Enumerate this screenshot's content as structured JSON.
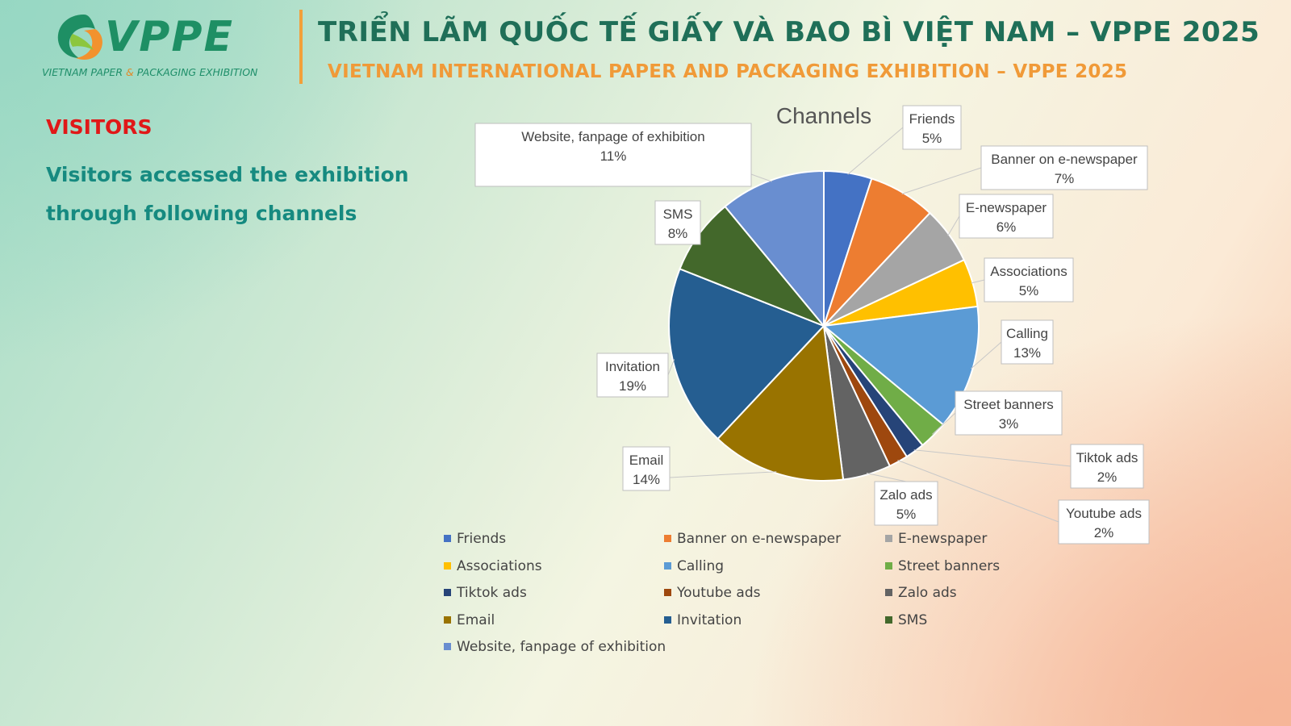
{
  "header": {
    "logo": {
      "word": "VPPE",
      "sub_left": "VIETNAM PAPER",
      "sub_amp": "&",
      "sub_right": "PACKAGING EXHIBITION"
    },
    "title_vn": "TRIỂN LÃM QUỐC TẾ GIẤY VÀ BAO BÌ VIỆT NAM – VPPE 2025",
    "title_en": "VIETNAM INTERNATIONAL  PAPER AND PACKAGING EXHIBITION – VPPE 2025"
  },
  "section": {
    "heading": "VISITORS",
    "description": "Visitors accessed the exhibition through following channels"
  },
  "chart_data": {
    "type": "pie",
    "title": "Channels",
    "legend_position": "bottom",
    "slices": [
      {
        "name": "Friends",
        "value": 5,
        "label": "5%",
        "color": "#4472c4"
      },
      {
        "name": "Banner on e-newspaper",
        "value": 7,
        "label": "7%",
        "color": "#ed7d31"
      },
      {
        "name": "E-newspaper",
        "value": 6,
        "label": "6%",
        "color": "#a5a5a5"
      },
      {
        "name": "Associations",
        "value": 5,
        "label": "5%",
        "color": "#ffc000"
      },
      {
        "name": "Calling",
        "value": 13,
        "label": "13%",
        "color": "#5b9bd5"
      },
      {
        "name": "Street banners",
        "value": 3,
        "label": "3%",
        "color": "#70ad47"
      },
      {
        "name": "Tiktok ads",
        "value": 2,
        "label": "2%",
        "color": "#264478"
      },
      {
        "name": "Youtube ads",
        "value": 2,
        "label": "2%",
        "color": "#9e480e"
      },
      {
        "name": "Zalo ads",
        "value": 5,
        "label": "5%",
        "color": "#636363"
      },
      {
        "name": "Email",
        "value": 14,
        "label": "14%",
        "color": "#997300"
      },
      {
        "name": "Invitation",
        "value": 19,
        "label": "19%",
        "color": "#255e91"
      },
      {
        "name": "SMS",
        "value": 8,
        "label": "8%",
        "color": "#43682b"
      },
      {
        "name": "Website, fanpage of exhibition",
        "value": 11,
        "label": "11%",
        "color": "#698ed0"
      }
    ]
  }
}
